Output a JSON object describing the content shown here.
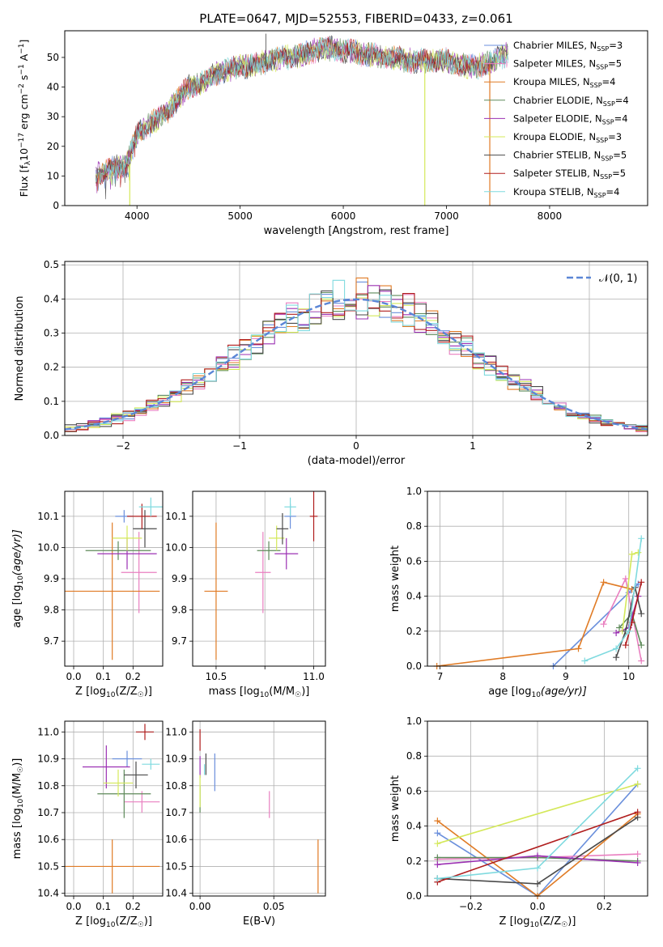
{
  "figure": {
    "title": "PLATE=0647, MJD=52553, FIBERID=0433, z=0.061",
    "model_colors": [
      "#6a8fdc",
      "#e97fc0",
      "#e07b25",
      "#5e8a5a",
      "#9b30b3",
      "#d4e85a",
      "#4a4a4a",
      "#b01e1e",
      "#7fdadf"
    ],
    "model_names": [
      "Chabrier MILES",
      "Salpeter MILES",
      "Kroupa MILES",
      "Chabrier ELODIE",
      "Salpeter ELODIE",
      "Kroupa ELODIE",
      "Chabrier STELIB",
      "Salpeter STELIB",
      "Kroupa STELIB"
    ],
    "nssp": [
      3,
      5,
      4,
      4,
      4,
      3,
      5,
      5,
      4
    ]
  },
  "chart_data": [
    {
      "id": "spectrum",
      "type": "line",
      "xlabel": "wavelength [Angstrom, rest frame]",
      "ylabel": "Flux [f_λ10^-17 erg cm^-2 s^-1 A^-1]",
      "xlim": [
        3300,
        8950
      ],
      "ylim": [
        0,
        59
      ],
      "xticks": [
        4000,
        5000,
        6000,
        7000,
        8000
      ],
      "yticks": [
        0,
        10,
        20,
        30,
        40,
        50
      ],
      "legend_position": "upper right",
      "continuum": {
        "x": [
          3600,
          3700,
          3800,
          3900,
          4000,
          4100,
          4200,
          4300,
          4400,
          4500,
          4600,
          4700,
          4800,
          4900,
          5000,
          5100,
          5200,
          5300,
          5400,
          5500,
          5600,
          5700,
          5800,
          5900,
          6000,
          6100,
          6200,
          6300,
          6400,
          6500,
          6600,
          6700,
          6800,
          6900,
          7000,
          7100,
          7200,
          7300,
          7400,
          7500,
          7600,
          7800,
          8000,
          8200,
          8400,
          8600
        ],
        "y": [
          10,
          12,
          13,
          14,
          24,
          27,
          29,
          32,
          36,
          40,
          41,
          43,
          45,
          46,
          47,
          47,
          48,
          49,
          50,
          50,
          51,
          52,
          53,
          53,
          52,
          52,
          51,
          51,
          50,
          50,
          49,
          49,
          49,
          49,
          49,
          48,
          47,
          47,
          48,
          50,
          51,
          52,
          52,
          52,
          52,
          52
        ]
      },
      "spikes": [
        {
          "x": 3930,
          "y": 0
        },
        {
          "x": 5250,
          "y": 58
        },
        {
          "x": 6790,
          "y": 0
        },
        {
          "x": 7420,
          "y": 0
        },
        {
          "x": 5880,
          "y": 51
        },
        {
          "x": 6700,
          "y": 58
        }
      ]
    },
    {
      "id": "residuals",
      "type": "histogram",
      "xlabel": "(data-model)/error",
      "ylabel": "Normed distribution",
      "xlim": [
        -2.5,
        2.5
      ],
      "ylim": [
        0,
        0.51
      ],
      "xticks": [
        -2,
        -1,
        0,
        1,
        2
      ],
      "yticks": [
        0.0,
        0.1,
        0.2,
        0.3,
        0.4,
        0.5
      ],
      "gaussian_label": "𝒩(0, 1)",
      "bin_width": 0.1,
      "bin_start": -2.5,
      "bins": 50
    },
    {
      "id": "age_vs_Z",
      "type": "errorbar",
      "xlabel": "Z [log10(Z/Z☉)]",
      "ylabel": "age [log10(age/yr)]",
      "xlim": [
        -0.03,
        0.3
      ],
      "ylim": [
        9.62,
        10.18
      ],
      "xticks": [
        0.0,
        0.1,
        0.2
      ],
      "yticks": [
        9.7,
        9.8,
        9.9,
        10.0,
        10.1
      ],
      "points": [
        {
          "x": 0.17,
          "xerr": 0.03,
          "y": 10.1,
          "yerr": 0.02
        },
        {
          "x": 0.22,
          "xerr": 0.06,
          "y": 9.92,
          "yerr": 0.13
        },
        {
          "x": 0.13,
          "xerr": 0.16,
          "y": 9.86,
          "yerr": 0.22
        },
        {
          "x": 0.15,
          "xerr": 0.11,
          "y": 9.99,
          "yerr": 0.03
        },
        {
          "x": 0.18,
          "xerr": 0.1,
          "y": 9.98,
          "yerr": 0.05
        },
        {
          "x": 0.18,
          "xerr": 0.05,
          "y": 10.03,
          "yerr": 0.04
        },
        {
          "x": 0.24,
          "xerr": 0.04,
          "y": 10.06,
          "yerr": 0.06
        },
        {
          "x": 0.23,
          "xerr": 0.05,
          "y": 10.1,
          "yerr": 0.04
        },
        {
          "x": 0.26,
          "xerr": 0.04,
          "y": 10.13,
          "yerr": 0.03
        }
      ]
    },
    {
      "id": "age_vs_mass",
      "type": "errorbar",
      "xlabel": "mass [log10(M/M☉)]",
      "xlim": [
        10.38,
        11.06
      ],
      "ylim": [
        9.62,
        10.18
      ],
      "xticks": [
        10.5,
        10.75,
        11.0
      ],
      "xticklabels": [
        "10.5",
        "",
        "11.0"
      ],
      "yticks": [
        9.7,
        9.8,
        9.9,
        10.0,
        10.1
      ],
      "points": [
        {
          "x": 10.88,
          "xerr": 0.03,
          "y": 10.1,
          "yerr": 0.04
        },
        {
          "x": 10.74,
          "xerr": 0.04,
          "y": 9.92,
          "yerr": 0.13
        },
        {
          "x": 10.5,
          "xerr": 0.06,
          "y": 9.86,
          "yerr": 0.22
        },
        {
          "x": 10.77,
          "xerr": 0.06,
          "y": 9.99,
          "yerr": 0.03
        },
        {
          "x": 10.86,
          "xerr": 0.06,
          "y": 9.98,
          "yerr": 0.05
        },
        {
          "x": 10.81,
          "xerr": 0.04,
          "y": 10.03,
          "yerr": 0.04
        },
        {
          "x": 10.84,
          "xerr": 0.03,
          "y": 10.06,
          "yerr": 0.05
        },
        {
          "x": 11.0,
          "xerr": 0.02,
          "y": 10.1,
          "yerr": 0.08
        },
        {
          "x": 10.88,
          "xerr": 0.03,
          "y": 10.13,
          "yerr": 0.03
        }
      ]
    },
    {
      "id": "weight_vs_age",
      "type": "line",
      "xlabel": "age [log10(age/yr)]",
      "ylabel": "mass weight",
      "xlim": [
        6.8,
        10.3
      ],
      "ylim": [
        0,
        1.0
      ],
      "xticks": [
        7,
        8,
        9,
        10
      ],
      "yticks": [
        0.0,
        0.2,
        0.4,
        0.6,
        0.8,
        1.0
      ],
      "series": [
        {
          "x": [
            8.8,
            10.0,
            10.15
          ],
          "y": [
            0.0,
            0.42,
            0.47
          ]
        },
        {
          "x": [
            9.6,
            9.95,
            10.2
          ],
          "y": [
            0.24,
            0.5,
            0.03
          ]
        },
        {
          "x": [
            6.95,
            9.2,
            9.6,
            10.05
          ],
          "y": [
            0.0,
            0.1,
            0.48,
            0.44
          ]
        },
        {
          "x": [
            9.85,
            10.05,
            10.2
          ],
          "y": [
            0.22,
            0.3,
            0.12
          ]
        },
        {
          "x": [
            9.8,
            10.0,
            10.15
          ],
          "y": [
            0.19,
            0.22,
            0.4
          ]
        },
        {
          "x": [
            9.9,
            10.05,
            10.15
          ],
          "y": [
            0.2,
            0.64,
            0.65
          ]
        },
        {
          "x": [
            9.8,
            9.95,
            10.1,
            10.2
          ],
          "y": [
            0.05,
            0.2,
            0.45,
            0.3
          ]
        },
        {
          "x": [
            9.95,
            10.05,
            10.2
          ],
          "y": [
            0.12,
            0.25,
            0.48
          ]
        },
        {
          "x": [
            9.3,
            9.8,
            10.0,
            10.2
          ],
          "y": [
            0.03,
            0.1,
            0.2,
            0.73
          ]
        }
      ]
    },
    {
      "id": "mass_vs_Z",
      "type": "errorbar",
      "xlabel": "Z [log10(Z/Z☉)]",
      "ylabel": "mass [log10(M/M☉)]",
      "xlim": [
        -0.03,
        0.3
      ],
      "ylim": [
        10.39,
        11.04
      ],
      "xticks": [
        0.0,
        0.1,
        0.2
      ],
      "yticks": [
        10.4,
        10.5,
        10.6,
        10.7,
        10.8,
        10.9,
        11.0
      ],
      "points": [
        {
          "x": 0.18,
          "xerr": 0.05,
          "y": 10.9,
          "yerr": 0.03
        },
        {
          "x": 0.23,
          "xerr": 0.06,
          "y": 10.74,
          "yerr": 0.04
        },
        {
          "x": 0.13,
          "xerr": 0.16,
          "y": 10.5,
          "yerr": 0.1
        },
        {
          "x": 0.17,
          "xerr": 0.09,
          "y": 10.77,
          "yerr": 0.09
        },
        {
          "x": 0.11,
          "xerr": 0.08,
          "y": 10.87,
          "yerr": 0.08
        },
        {
          "x": 0.15,
          "xerr": 0.05,
          "y": 10.81,
          "yerr": 0.05
        },
        {
          "x": 0.21,
          "xerr": 0.04,
          "y": 10.84,
          "yerr": 0.05
        },
        {
          "x": 0.24,
          "xerr": 0.03,
          "y": 11.0,
          "yerr": 0.03
        },
        {
          "x": 0.26,
          "xerr": 0.03,
          "y": 10.88,
          "yerr": 0.02
        }
      ]
    },
    {
      "id": "mass_vs_ebv",
      "type": "errorbar",
      "xlabel": "E(B-V)",
      "xlim": [
        -0.005,
        0.085
      ],
      "ylim": [
        10.39,
        11.04
      ],
      "xticks": [
        0.0,
        0.05
      ],
      "xticklabels": [
        "0.00",
        "0.05"
      ],
      "yticks": [
        10.4,
        10.5,
        10.6,
        10.7,
        10.8,
        10.9,
        11.0
      ],
      "points": [
        {
          "x": 0.01,
          "xerr": 0,
          "y": 10.85,
          "yerr": 0.07
        },
        {
          "x": 0.047,
          "xerr": 0,
          "y": 10.73,
          "yerr": 0.05
        },
        {
          "x": 0.08,
          "xerr": 0,
          "y": 10.5,
          "yerr": 0.1
        },
        {
          "x": 0.0,
          "xerr": 0,
          "y": 10.75,
          "yerr": 0.05
        },
        {
          "x": 0.0,
          "xerr": 0,
          "y": 10.87,
          "yerr": 0.04
        },
        {
          "x": 0.0,
          "xerr": 0,
          "y": 10.78,
          "yerr": 0.06
        },
        {
          "x": 0.004,
          "xerr": 0,
          "y": 10.88,
          "yerr": 0.04
        },
        {
          "x": 0.0,
          "xerr": 0,
          "y": 10.97,
          "yerr": 0.04
        },
        {
          "x": 0.003,
          "xerr": 0,
          "y": 10.86,
          "yerr": 0.02
        }
      ]
    },
    {
      "id": "weight_vs_Z",
      "type": "line",
      "xlabel": "Z [log10(Z/Z☉)]",
      "ylabel": "mass weight",
      "xlim": [
        -0.33,
        0.33
      ],
      "ylim": [
        0,
        1.0
      ],
      "xticks": [
        -0.2,
        0.0,
        0.2
      ],
      "yticks": [
        0.0,
        0.2,
        0.4,
        0.6,
        0.8,
        1.0
      ],
      "series": [
        {
          "x": [
            -0.3,
            0.0,
            0.3
          ],
          "y": [
            0.36,
            0.0,
            0.64
          ]
        },
        {
          "x": [
            -0.3,
            0.0,
            0.3
          ],
          "y": [
            0.21,
            0.22,
            0.24
          ]
        },
        {
          "x": [
            -0.3,
            0.0,
            0.3
          ],
          "y": [
            0.43,
            0.0,
            0.47
          ]
        },
        {
          "x": [
            -0.3,
            0.0,
            0.3
          ],
          "y": [
            0.22,
            0.22,
            0.2
          ]
        },
        {
          "x": [
            -0.3,
            0.0,
            0.3
          ],
          "y": [
            0.18,
            0.23,
            0.19
          ]
        },
        {
          "x": [
            -0.3,
            0.3
          ],
          "y": [
            0.3,
            0.64
          ]
        },
        {
          "x": [
            -0.3,
            0.0,
            0.3
          ],
          "y": [
            0.1,
            0.07,
            0.45
          ]
        },
        {
          "x": [
            -0.3,
            0.3
          ],
          "y": [
            0.08,
            0.48
          ]
        },
        {
          "x": [
            -0.3,
            0.0,
            0.3
          ],
          "y": [
            0.1,
            0.16,
            0.73
          ]
        }
      ]
    }
  ]
}
